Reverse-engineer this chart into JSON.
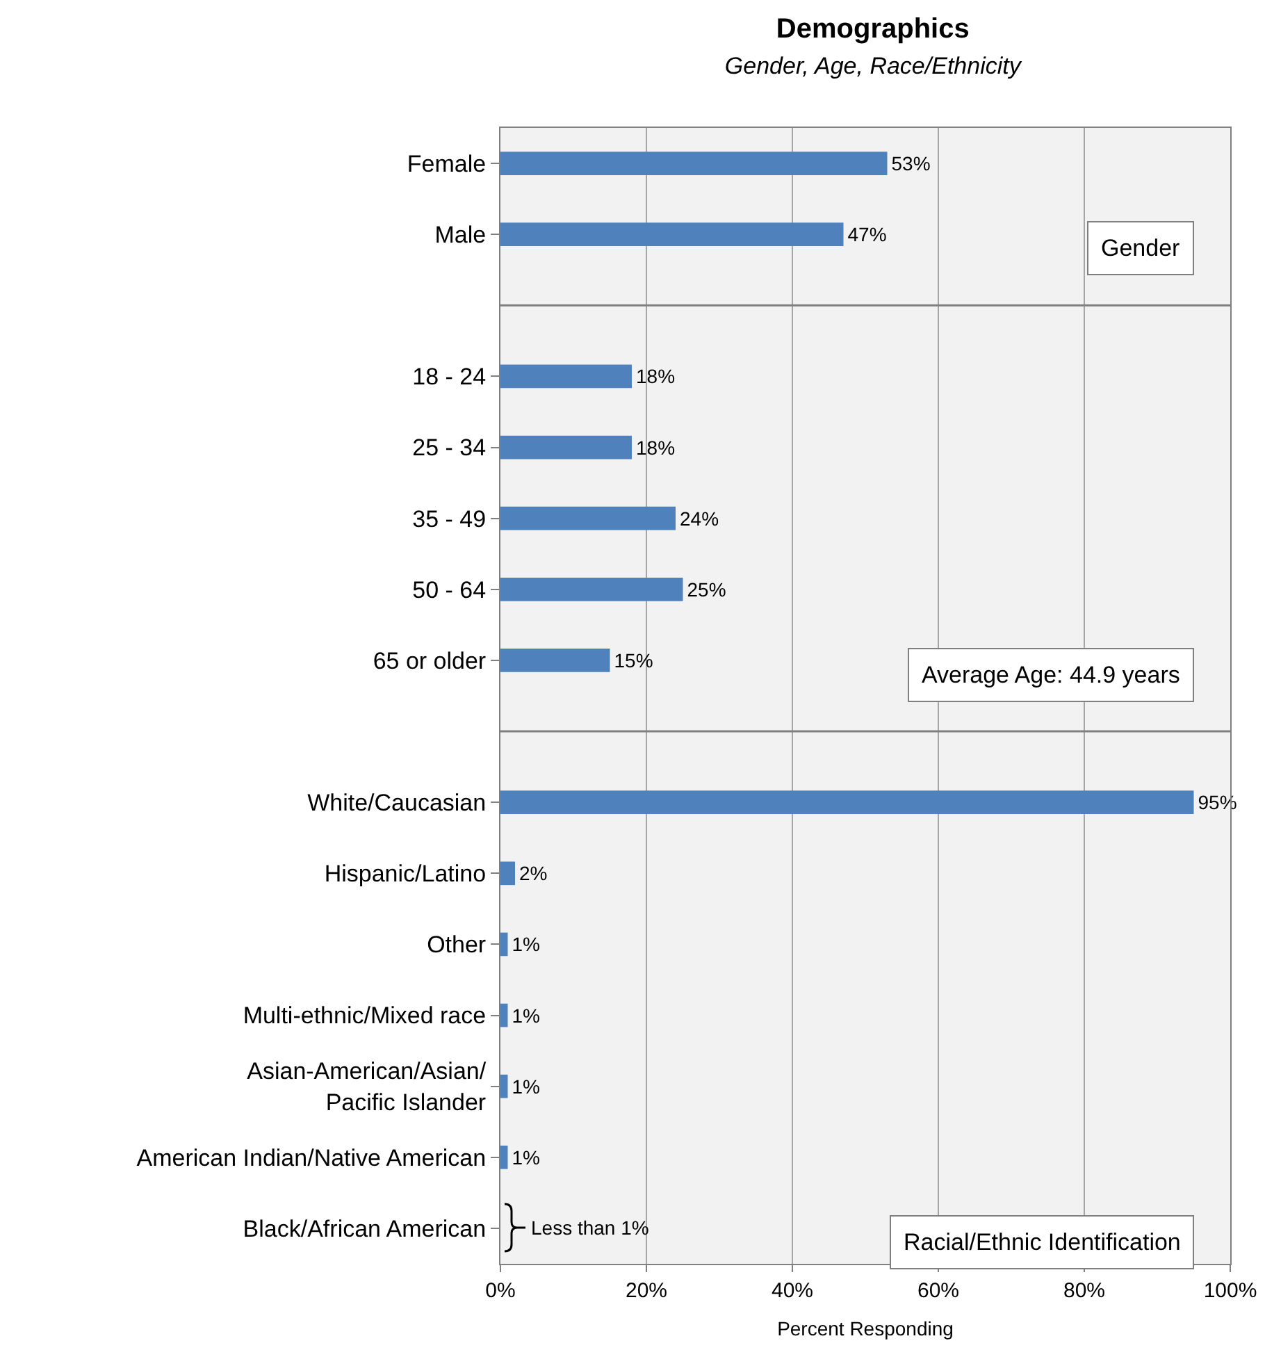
{
  "chart_data": {
    "type": "bar",
    "orientation": "horizontal",
    "title": "Demographics",
    "subtitle": "Gender, Age, Race/Ethnicity",
    "xlabel": "Percent Responding",
    "categories": [
      "Female",
      "Male",
      null,
      "18 - 24",
      "25 - 34",
      "35 - 49",
      "50 - 64",
      "65 or older",
      null,
      "White/Caucasian",
      "Hispanic/Latino",
      "Other",
      "Multi-ethnic/Mixed race",
      "Asian-American/Asian/Pacific Islander",
      "American Indian/Native American",
      "Black/African American"
    ],
    "values": [
      53,
      47,
      null,
      18,
      18,
      24,
      25,
      15,
      null,
      95,
      2,
      1,
      1,
      1,
      1,
      null
    ],
    "value_labels": [
      "53%",
      "47%",
      null,
      "18%",
      "18%",
      "24%",
      "25%",
      "15%",
      null,
      "95%",
      "2%",
      "1%",
      "1%",
      "1%",
      "1%",
      null
    ],
    "color": "#4f81bd",
    "xlim": [
      0,
      100
    ],
    "xticks": [
      {
        "value": 0,
        "label": "0%"
      },
      {
        "value": 20,
        "label": "20%"
      },
      {
        "value": 40,
        "label": "40%"
      },
      {
        "value": 60,
        "label": "60%"
      },
      {
        "value": 80,
        "label": "80%"
      },
      {
        "value": 100,
        "label": "100%"
      }
    ],
    "grid": "x",
    "annotations": [
      "Gender",
      "Average Age: 44.9 years",
      "Racial/Ethnic Identification",
      "Less than 1%"
    ]
  }
}
